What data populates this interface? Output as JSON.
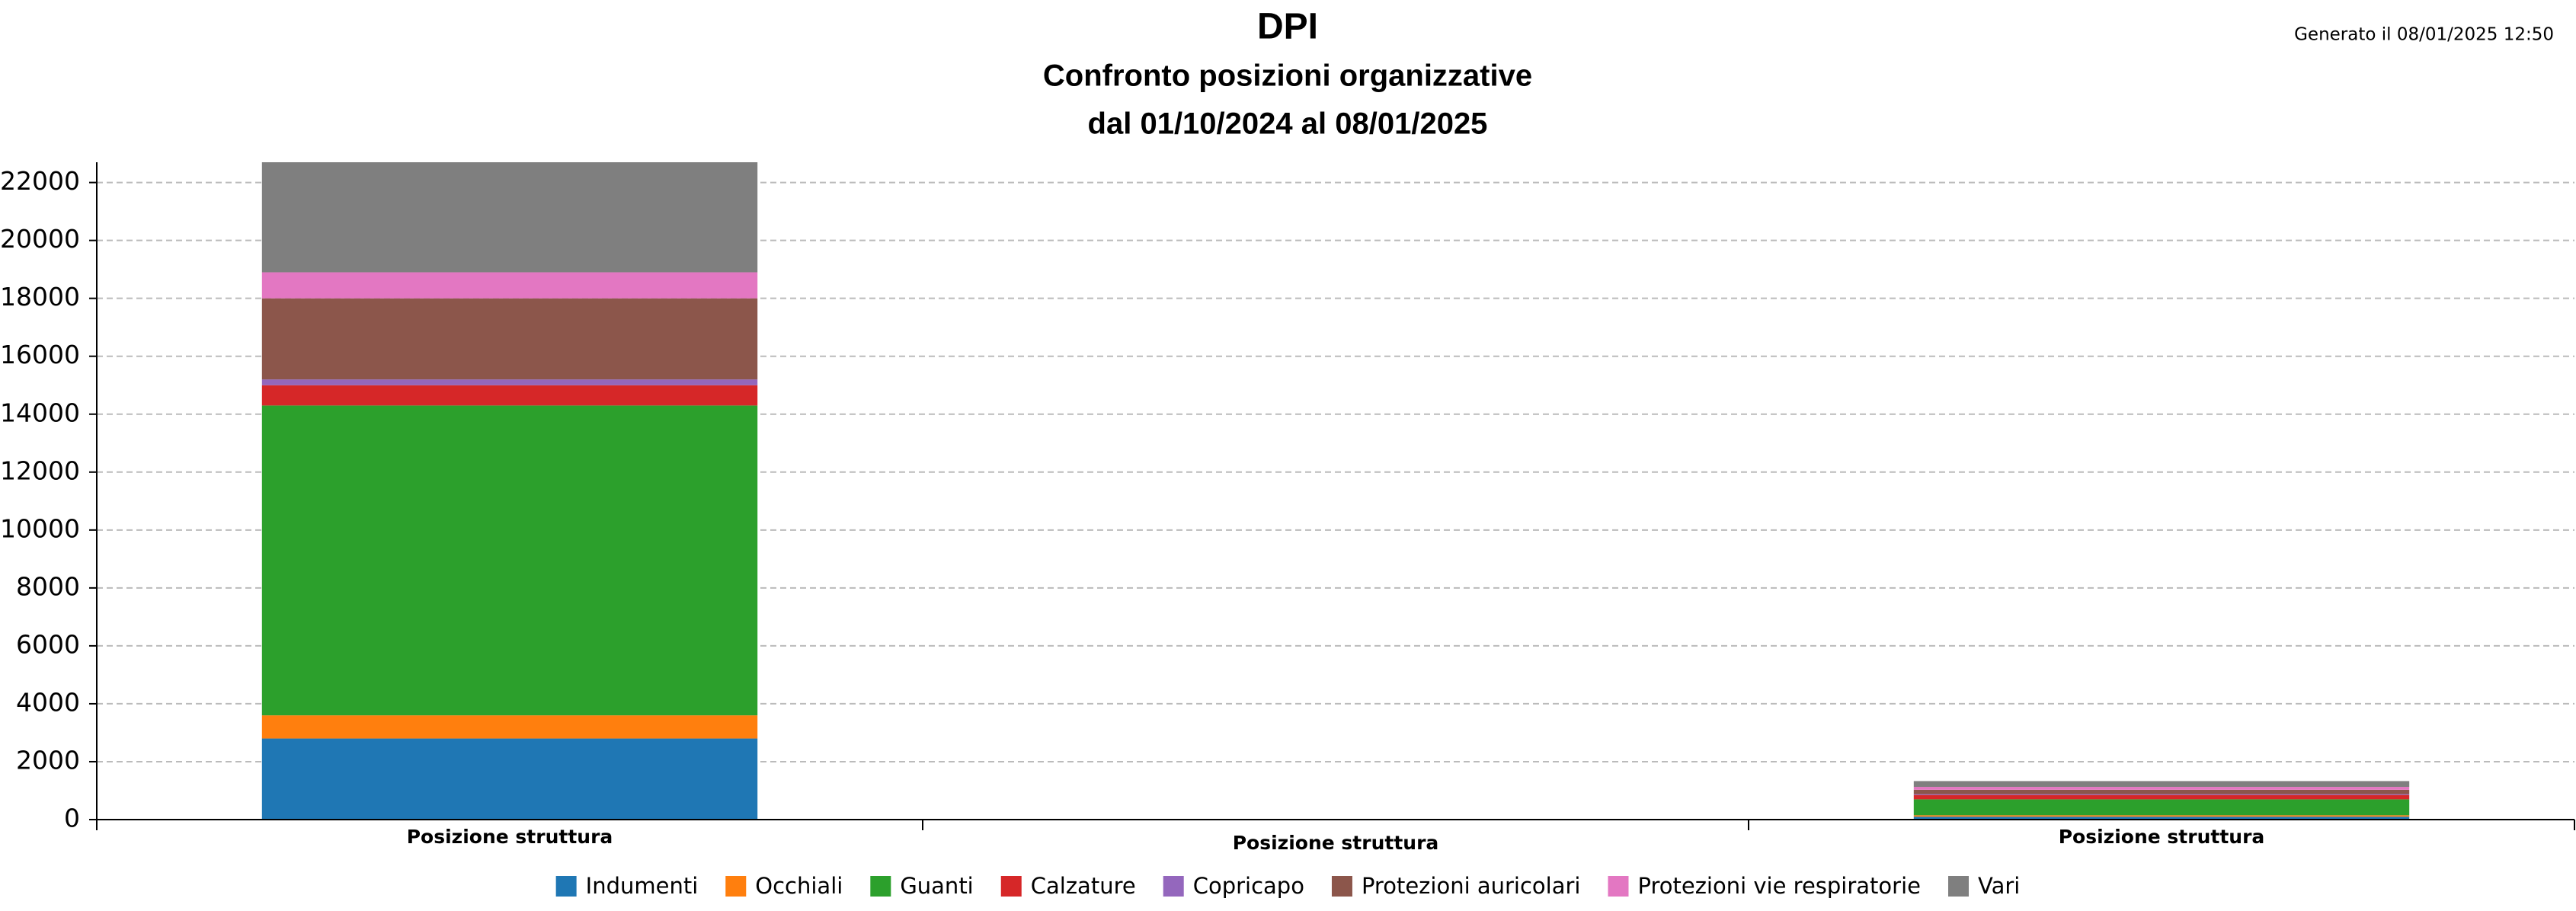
{
  "chart_data": {
    "type": "stacked_bar",
    "title": "DPI",
    "subtitle": [
      "Confronto posizioni organizzative",
      "dal 01/10/2024 al 08/01/2025"
    ],
    "annotation": "Generato il 08/01/2025 12:50",
    "categories": [
      "Posizione struttura",
      "Posizione struttura",
      "Posizione struttura"
    ],
    "series": [
      {
        "name": "Indumenti",
        "color": "#1f77b4",
        "values": [
          2800,
          0,
          100
        ]
      },
      {
        "name": "Occhiali",
        "color": "#ff7f0e",
        "values": [
          800,
          0,
          50
        ]
      },
      {
        "name": "Guanti",
        "color": "#2ca02c",
        "values": [
          10700,
          0,
          550
        ]
      },
      {
        "name": "Calzature",
        "color": "#d62728",
        "values": [
          700,
          0,
          150
        ]
      },
      {
        "name": "Copricapo",
        "color": "#9467bd",
        "values": [
          200,
          0,
          30
        ]
      },
      {
        "name": "Protezioni auricolari",
        "color": "#8c564b",
        "values": [
          2800,
          0,
          150
        ]
      },
      {
        "name": "Protezioni vie respiratorie",
        "color": "#e377c2",
        "values": [
          900,
          0,
          100
        ]
      },
      {
        "name": "Vari",
        "color": "#7f7f7f",
        "values": [
          3800,
          0,
          200
        ]
      }
    ],
    "ylim": [
      0,
      22700
    ],
    "yticks": [
      0,
      2000,
      4000,
      6000,
      8000,
      10000,
      12000,
      14000,
      16000,
      18000,
      20000,
      22000
    ],
    "grid": true
  }
}
